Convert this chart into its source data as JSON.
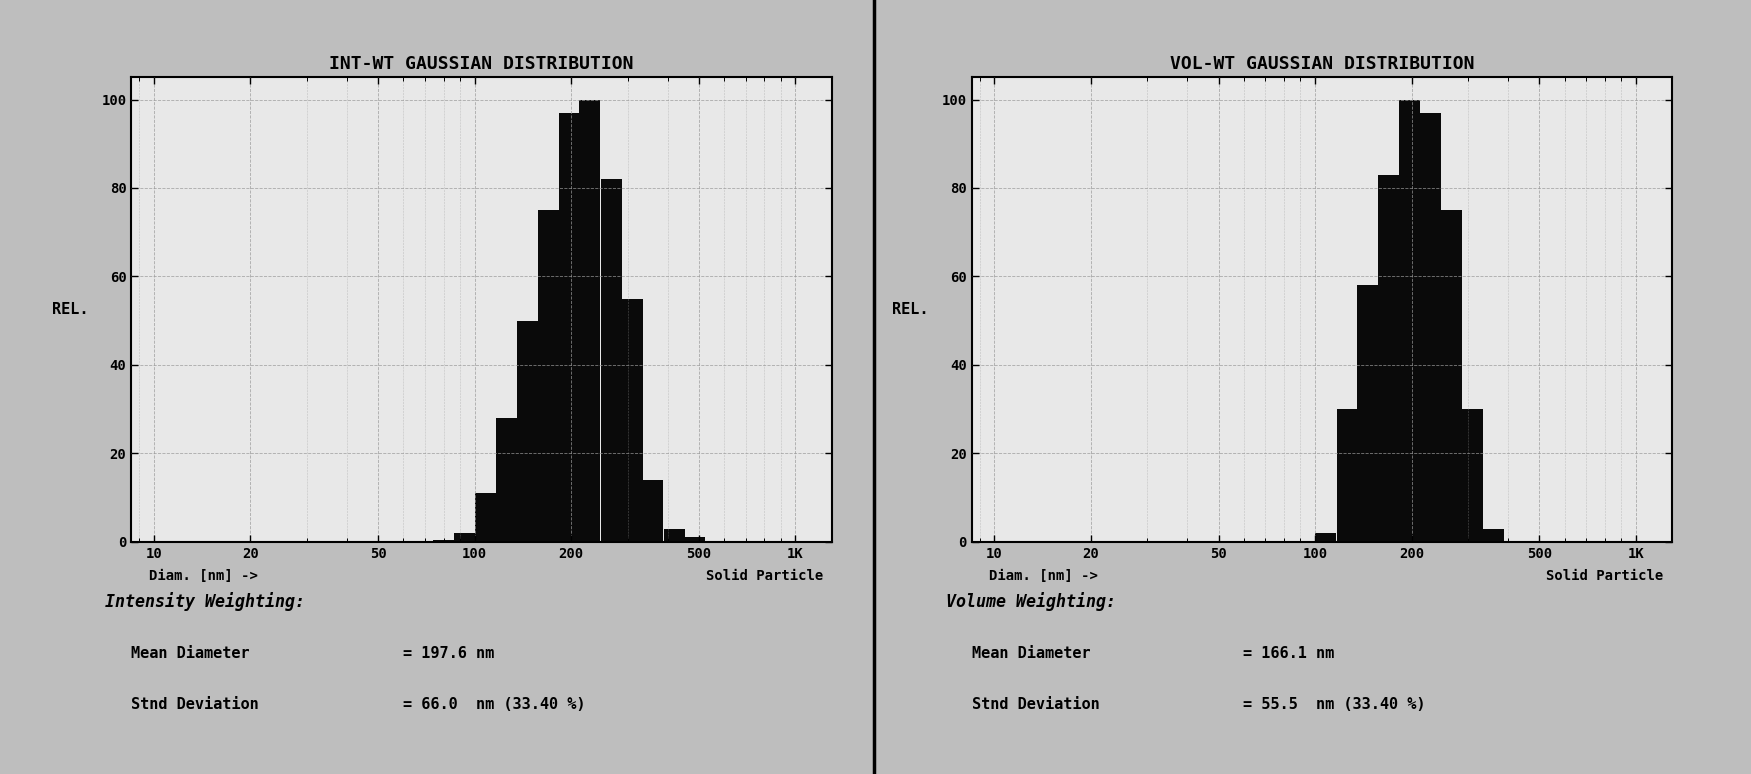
{
  "left_title": "INT-WT GAUSSIAN DISTRIBUTION",
  "right_title": "VOL-WT GAUSSIAN DISTRIBUTION",
  "left_ylabel": "REL.",
  "right_ylabel": "REL.",
  "xlabel": "Diam. [nm] ->",
  "right_label": "Solid Particle",
  "xtick_labels": [
    "10",
    "20",
    "50",
    "100",
    "200",
    "500",
    "1K"
  ],
  "xtick_vals": [
    10,
    20,
    50,
    100,
    200,
    500,
    1000
  ],
  "ylim": [
    0,
    105
  ],
  "ytick_vals": [
    0,
    20,
    40,
    60,
    80,
    100
  ],
  "left_bars": {
    "centers": [
      80,
      93,
      108,
      126,
      146,
      170,
      197,
      229,
      267,
      310,
      360,
      419,
      487
    ],
    "heights": [
      0.5,
      2.0,
      11.0,
      28.0,
      50.0,
      75.0,
      97.0,
      100.0,
      82.0,
      55.0,
      14.0,
      3.0,
      1.0
    ]
  },
  "right_bars": {
    "centers": [
      80,
      93,
      108,
      126,
      146,
      170,
      197,
      229,
      267,
      310,
      360
    ],
    "heights": [
      0.0,
      0.0,
      2.0,
      30.0,
      58.0,
      83.0,
      100.0,
      97.0,
      75.0,
      30.0,
      3.0
    ]
  },
  "left_stat_title": "Intensity Weighting:",
  "left_mean_label": "Mean Diameter",
  "left_mean_val": "= 197.6 nm",
  "left_std_label": "Stnd Deviation",
  "left_std_val": "= 66.0  nm (33.40 %)",
  "right_stat_title": "Volume Weighting:",
  "right_mean_label": "Mean Diameter",
  "right_mean_val": "= 166.1 nm",
  "right_std_label": "Stnd Deviation",
  "right_std_val": "= 55.5  nm (33.40 %)",
  "bar_color": "#0a0a0a",
  "plot_bg_color": "#e8e8e8",
  "grid_color": "#999999",
  "fig_bg_color": "#bebebe",
  "panel_bg_color": "#bebebe"
}
